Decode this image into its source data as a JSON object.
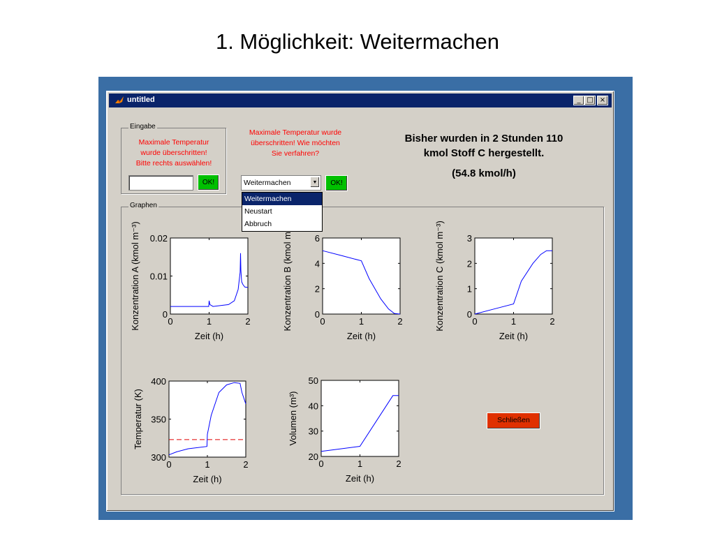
{
  "slide": {
    "title": "1. Möglichkeit: Weitermachen"
  },
  "window": {
    "title": "untitled",
    "controls": [
      "minimize",
      "maximize",
      "close"
    ]
  },
  "eingabe": {
    "group_label": "Eingabe",
    "message_lines": [
      "Maximale Temperatur",
      "wurde überschritten!",
      "Bitte rechts auswählen!"
    ],
    "input_value": "",
    "ok_label": "OK!"
  },
  "prompt": {
    "lines": [
      "Maximale Temperatur wurde",
      "überschritten! Wie möchten",
      "Sie verfahren?"
    ],
    "select_value": "Weitermachen",
    "options": [
      "Weitermachen",
      "Neustart",
      "Abbruch"
    ],
    "ok_label": "OK!"
  },
  "info": {
    "lines": [
      "Bisher wurden in 2 Stunden 110",
      "kmol Stoff C hergestellt."
    ],
    "rate": "(54.8 kmol/h)"
  },
  "graphen": {
    "group_label": "Graphen"
  },
  "close_label": "Schließen",
  "colors": {
    "line": "#0000ff",
    "limit": "#e00000",
    "ok": "#00c000",
    "close": "#e03000",
    "titlebar": "#0a246a"
  },
  "chart_data": [
    {
      "type": "line",
      "title": "",
      "xlabel": "Zeit (h)",
      "ylabel": "Konzentration A (kmol m⁻³)",
      "xlim": [
        0,
        2
      ],
      "ylim": [
        0,
        0.02
      ],
      "xticks": [
        "0",
        "1",
        "2"
      ],
      "yticks": [
        "0",
        "0.01",
        "0.02"
      ],
      "series": [
        {
          "x": [
            0,
            0.5,
            0.99,
            1.0,
            1.02,
            1.1,
            1.5,
            1.65,
            1.75,
            1.8,
            1.81,
            1.82,
            1.84,
            1.87,
            1.92,
            2.0
          ],
          "y": [
            0.002,
            0.002,
            0.002,
            0.0035,
            0.0025,
            0.002,
            0.0025,
            0.0035,
            0.0065,
            0.011,
            0.016,
            0.0115,
            0.0085,
            0.0078,
            0.0071,
            0.007
          ]
        }
      ]
    },
    {
      "type": "line",
      "title": "",
      "xlabel": "Zeit (h)",
      "ylabel": "Konzentration B (kmol m⁻³)",
      "xlim": [
        0,
        2
      ],
      "ylim": [
        0,
        6
      ],
      "xticks": [
        "0",
        "1",
        "2"
      ],
      "yticks": [
        "0",
        "2",
        "4",
        "6"
      ],
      "series": [
        {
          "x": [
            0,
            0.5,
            1.0,
            1.2,
            1.5,
            1.7,
            1.85,
            2.0
          ],
          "y": [
            5.0,
            4.6,
            4.2,
            2.8,
            1.2,
            0.4,
            0.05,
            0.0
          ]
        }
      ]
    },
    {
      "type": "line",
      "title": "",
      "xlabel": "Zeit (h)",
      "ylabel": "Konzentration C (kmol m⁻³)",
      "xlim": [
        0,
        2
      ],
      "ylim": [
        0,
        3
      ],
      "xticks": [
        "0",
        "1",
        "2"
      ],
      "yticks": [
        "0",
        "1",
        "2",
        "3"
      ],
      "series": [
        {
          "x": [
            0,
            0.5,
            1.0,
            1.2,
            1.5,
            1.7,
            1.85,
            2.0
          ],
          "y": [
            0.0,
            0.2,
            0.4,
            1.3,
            2.0,
            2.35,
            2.5,
            2.5
          ]
        }
      ]
    },
    {
      "type": "line",
      "title": "",
      "xlabel": "Zeit (h)",
      "ylabel": "Temperatur (K)",
      "xlim": [
        0,
        2
      ],
      "ylim": [
        300,
        400
      ],
      "xticks": [
        "0",
        "1",
        "2"
      ],
      "yticks": [
        "300",
        "350",
        "400"
      ],
      "series": [
        {
          "x": [
            0,
            0.2,
            0.5,
            0.99,
            1.0,
            1.1,
            1.3,
            1.5,
            1.7,
            1.85,
            1.9,
            2.0
          ],
          "y": [
            303,
            307,
            311,
            314,
            330,
            355,
            385,
            395,
            398,
            397,
            385,
            370
          ]
        }
      ],
      "limit_line": 323
    },
    {
      "type": "line",
      "title": "",
      "xlabel": "Zeit (h)",
      "ylabel": "Volumen (m³)",
      "xlim": [
        0,
        2
      ],
      "ylim": [
        20,
        50
      ],
      "xticks": [
        "0",
        "1",
        "2"
      ],
      "yticks": [
        "20",
        "30",
        "40",
        "50"
      ],
      "series": [
        {
          "x": [
            0,
            1.0,
            1.85,
            2.0
          ],
          "y": [
            22,
            24,
            44,
            44
          ]
        }
      ]
    }
  ]
}
